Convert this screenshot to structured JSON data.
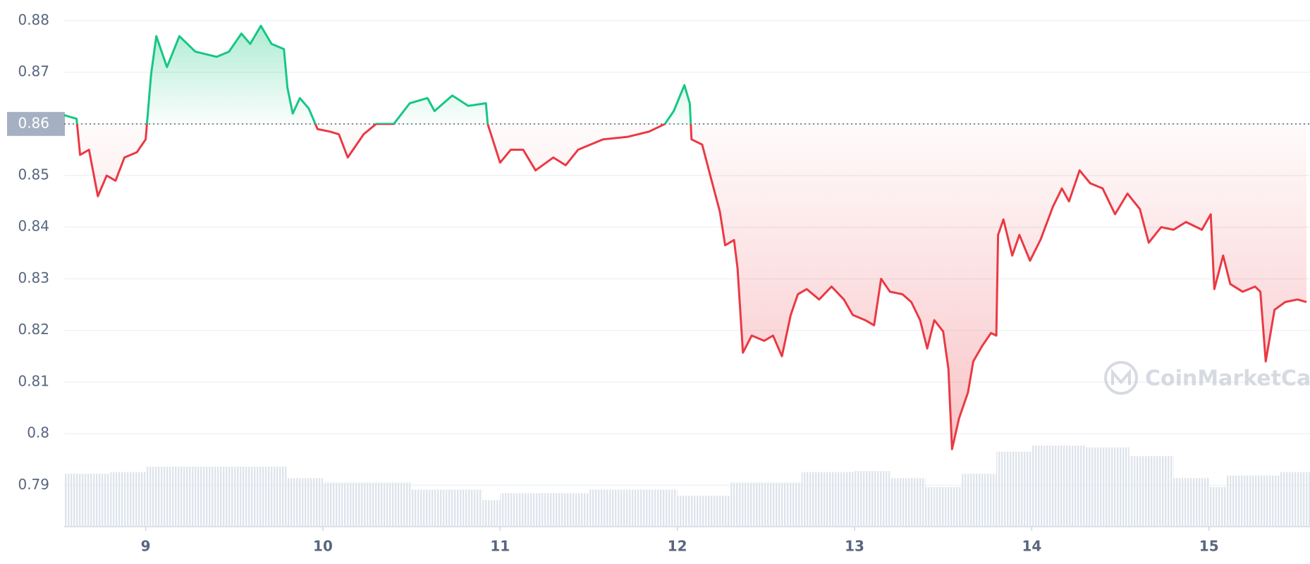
{
  "chart_data": {
    "type": "line",
    "watermark": "CoinMarketCap",
    "xlim": [
      8.54,
      15.57
    ],
    "xticks": [
      9,
      10,
      11,
      12,
      13,
      14,
      15
    ],
    "ylim": [
      0.782,
      0.884
    ],
    "yticks": [
      0.79,
      0.8,
      0.81,
      0.82,
      0.83,
      0.84,
      0.85,
      0.86,
      0.87,
      0.88
    ],
    "baseline": 0.86,
    "grid": true,
    "up_color": "#16c784",
    "down_color": "#ea3943",
    "series": [
      {
        "x": [
          8.54,
          8.61,
          8.63,
          8.68,
          8.73,
          8.78,
          8.83,
          8.88,
          8.95,
          9.0,
          9.03,
          9.06,
          9.12,
          9.19,
          9.28,
          9.4,
          9.47,
          9.54,
          9.59,
          9.65,
          9.71,
          9.78,
          9.8,
          9.83,
          9.87,
          9.92,
          9.97,
          10.04,
          10.09,
          10.14,
          10.23,
          10.3,
          10.4,
          10.49,
          10.59,
          10.63,
          10.73,
          10.82,
          10.92,
          10.93,
          11.0,
          11.06,
          11.13,
          11.2,
          11.3,
          11.37,
          11.44,
          11.58,
          11.72,
          11.84,
          11.93,
          11.98,
          12.04,
          12.07,
          12.08,
          12.14,
          12.19,
          12.24,
          12.27,
          12.32,
          12.34,
          12.37,
          12.42,
          12.49,
          12.54,
          12.59,
          12.64,
          12.68,
          12.73,
          12.8,
          12.87,
          12.94,
          12.99,
          13.06,
          13.11,
          13.15,
          13.2,
          13.27,
          13.32,
          13.37,
          13.41,
          13.45,
          13.5,
          13.53,
          13.55,
          13.59,
          13.64,
          13.67,
          13.72,
          13.77,
          13.8,
          13.81,
          13.84,
          13.89,
          13.93,
          13.99,
          14.05,
          14.12,
          14.17,
          14.21,
          14.27,
          14.33,
          14.4,
          14.47,
          14.54,
          14.61,
          14.66,
          14.73,
          14.8,
          14.87,
          14.96,
          15.01,
          15.03,
          15.08,
          15.12,
          15.19,
          15.26,
          15.29,
          15.32,
          15.37,
          15.43,
          15.5,
          15.55
        ],
        "values": [
          0.8617,
          0.861,
          0.854,
          0.855,
          0.846,
          0.85,
          0.849,
          0.8535,
          0.8545,
          0.857,
          0.8695,
          0.877,
          0.871,
          0.877,
          0.874,
          0.873,
          0.874,
          0.8775,
          0.8755,
          0.879,
          0.8755,
          0.8745,
          0.867,
          0.862,
          0.865,
          0.863,
          0.859,
          0.8585,
          0.858,
          0.8535,
          0.858,
          0.86,
          0.86,
          0.864,
          0.865,
          0.8625,
          0.8655,
          0.8635,
          0.864,
          0.86,
          0.8525,
          0.855,
          0.855,
          0.851,
          0.8535,
          0.852,
          0.855,
          0.857,
          0.8575,
          0.8585,
          0.86,
          0.8625,
          0.8675,
          0.864,
          0.857,
          0.856,
          0.8495,
          0.843,
          0.8365,
          0.8375,
          0.832,
          0.8157,
          0.819,
          0.818,
          0.819,
          0.815,
          0.823,
          0.827,
          0.828,
          0.826,
          0.8285,
          0.826,
          0.823,
          0.822,
          0.821,
          0.83,
          0.8275,
          0.827,
          0.8255,
          0.822,
          0.8165,
          0.822,
          0.8198,
          0.8125,
          0.797,
          0.803,
          0.808,
          0.814,
          0.817,
          0.8195,
          0.819,
          0.8385,
          0.8415,
          0.8345,
          0.8385,
          0.8335,
          0.8376,
          0.844,
          0.8475,
          0.845,
          0.851,
          0.8485,
          0.8475,
          0.8425,
          0.8465,
          0.8435,
          0.837,
          0.84,
          0.8395,
          0.841,
          0.8395,
          0.8425,
          0.828,
          0.8345,
          0.829,
          0.8275,
          0.8285,
          0.8275,
          0.814,
          0.824,
          0.8255,
          0.826,
          0.8255
        ]
      }
    ],
    "volume": {
      "color": "#dfe4ec",
      "x": [
        8.54,
        8.8,
        9.0,
        9.5,
        9.8,
        10.0,
        10.5,
        10.9,
        11.0,
        11.5,
        12.0,
        12.3,
        12.7,
        13.0,
        13.2,
        13.4,
        13.6,
        13.8,
        14.0,
        14.3,
        14.55,
        14.8,
        15.0,
        15.1,
        15.4
      ],
      "values": [
        60,
        62,
        68,
        68,
        55,
        50,
        42,
        30,
        38,
        42,
        35,
        50,
        62,
        63,
        55,
        45,
        60,
        85,
        92,
        90,
        80,
        55,
        45,
        58,
        62
      ]
    }
  }
}
